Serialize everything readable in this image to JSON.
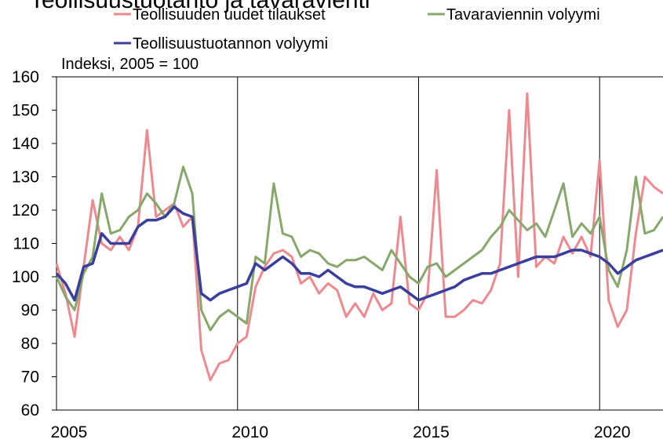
{
  "chart_data": {
    "type": "line",
    "title": "Teollisuustuotanto ja tavaravienti",
    "y_label": "Indeksi, 2005 = 100",
    "x": [
      2005,
      2005.25,
      2005.5,
      2005.75,
      2006,
      2006.25,
      2006.5,
      2006.75,
      2007,
      2007.25,
      2007.5,
      2007.75,
      2008,
      2008.25,
      2008.5,
      2008.75,
      2009,
      2009.25,
      2009.5,
      2009.75,
      2010,
      2010.25,
      2010.5,
      2010.75,
      2011,
      2011.25,
      2011.5,
      2011.75,
      2012,
      2012.25,
      2012.5,
      2012.75,
      2013,
      2013.25,
      2013.5,
      2013.75,
      2014,
      2014.25,
      2014.5,
      2014.75,
      2015,
      2015.25,
      2015.5,
      2015.75,
      2016,
      2016.25,
      2016.5,
      2016.75,
      2017,
      2017.25,
      2017.5,
      2017.75,
      2018,
      2018.25,
      2018.5,
      2018.75,
      2019,
      2019.25,
      2019.5,
      2019.75,
      2020,
      2020.25,
      2020.5,
      2020.75,
      2021,
      2021.25,
      2021.5,
      2021.75
    ],
    "series": [
      {
        "name": "Teollisuuden uudet tilaukset",
        "color": "#ee8a8f",
        "values": [
          104,
          95,
          82,
          103,
          123,
          110,
          108,
          112,
          108,
          115,
          144,
          118,
          120,
          122,
          115,
          118,
          78,
          69,
          74,
          75,
          80,
          82,
          97,
          103,
          107,
          108,
          106,
          98,
          100,
          95,
          98,
          96,
          88,
          92,
          88,
          95,
          90,
          92,
          118,
          92,
          90,
          95,
          132,
          88,
          88,
          90,
          93,
          92,
          96,
          104,
          150,
          100,
          155,
          103,
          106,
          104,
          112,
          107,
          112,
          106,
          135,
          93,
          85,
          90,
          113,
          130,
          127,
          125
        ]
      },
      {
        "name": "Tavaraviennin volyymi",
        "color": "#86a86b",
        "values": [
          100,
          94,
          90,
          101,
          106,
          125,
          113,
          114,
          118,
          120,
          125,
          122,
          118,
          122,
          133,
          125,
          90,
          84,
          88,
          90,
          88,
          86,
          106,
          104,
          128,
          113,
          112,
          106,
          108,
          107,
          104,
          103,
          105,
          105,
          106,
          104,
          102,
          108,
          104,
          100,
          98,
          103,
          104,
          100,
          102,
          104,
          106,
          108,
          112,
          115,
          120,
          117,
          114,
          116,
          112,
          120,
          128,
          112,
          116,
          113,
          118,
          102,
          97,
          108,
          130,
          113,
          114,
          118
        ]
      },
      {
        "name": "Teollisuustuotannon volyymi",
        "color": "#3a3f9e",
        "values": [
          101,
          98,
          93,
          103,
          104,
          113,
          110,
          110,
          110,
          115,
          117,
          117,
          118,
          121,
          119,
          118,
          95,
          93,
          95,
          96,
          97,
          98,
          104,
          102,
          104,
          106,
          104,
          101,
          101,
          100,
          102,
          100,
          98,
          97,
          97,
          96,
          95,
          96,
          97,
          95,
          93,
          94,
          95,
          96,
          97,
          99,
          100,
          101,
          101,
          102,
          103,
          104,
          105,
          106,
          106,
          106,
          107,
          108,
          108,
          107,
          106,
          104,
          101,
          103,
          105,
          106,
          107,
          108
        ]
      }
    ],
    "xlim": [
      2005,
      2021.75
    ],
    "xticks": [
      2005,
      2010,
      2015,
      2020
    ],
    "ylim": [
      60,
      160
    ],
    "yticks": [
      60,
      70,
      80,
      90,
      100,
      110,
      120,
      130,
      140,
      150,
      160
    ],
    "grid": true
  }
}
